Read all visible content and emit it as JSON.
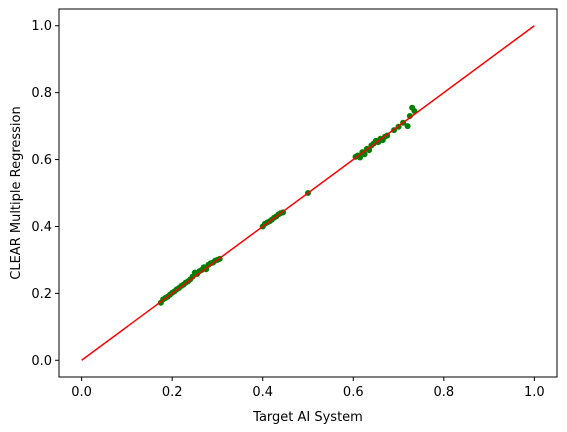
{
  "chart_data": {
    "type": "scatter",
    "title": "",
    "xlabel": "Target AI System",
    "ylabel": "CLEAR Multiple Regression",
    "xlim": [
      -0.05,
      1.05
    ],
    "ylim": [
      -0.05,
      1.05
    ],
    "xticks": [
      0.0,
      0.2,
      0.4,
      0.6,
      0.8,
      1.0
    ],
    "yticks": [
      0.0,
      0.2,
      0.4,
      0.6,
      0.8,
      1.0
    ],
    "xtick_labels": [
      "0.0",
      "0.2",
      "0.4",
      "0.6",
      "0.8",
      "1.0"
    ],
    "ytick_labels": [
      "0.0",
      "0.2",
      "0.4",
      "0.6",
      "0.8",
      "1.0"
    ],
    "grid": false,
    "colors": {
      "points": "#008000",
      "line": "#ff0000"
    },
    "line": {
      "x": [
        0.0,
        1.0
      ],
      "y": [
        0.0,
        1.0
      ]
    },
    "points": {
      "x": [
        0.175,
        0.18,
        0.185,
        0.19,
        0.195,
        0.2,
        0.205,
        0.21,
        0.215,
        0.22,
        0.225,
        0.23,
        0.235,
        0.24,
        0.245,
        0.25,
        0.255,
        0.26,
        0.265,
        0.27,
        0.275,
        0.28,
        0.285,
        0.29,
        0.295,
        0.3,
        0.305,
        0.4,
        0.405,
        0.41,
        0.415,
        0.42,
        0.425,
        0.43,
        0.435,
        0.44,
        0.445,
        0.5,
        0.605,
        0.61,
        0.615,
        0.62,
        0.625,
        0.63,
        0.635,
        0.64,
        0.645,
        0.65,
        0.655,
        0.66,
        0.665,
        0.67,
        0.675,
        0.69,
        0.7,
        0.71,
        0.72,
        0.725,
        0.73,
        0.735
      ],
      "y": [
        0.172,
        0.182,
        0.186,
        0.19,
        0.196,
        0.202,
        0.206,
        0.212,
        0.216,
        0.222,
        0.226,
        0.232,
        0.236,
        0.242,
        0.25,
        0.262,
        0.258,
        0.266,
        0.27,
        0.278,
        0.272,
        0.285,
        0.29,
        0.292,
        0.298,
        0.3,
        0.303,
        0.4,
        0.408,
        0.412,
        0.415,
        0.42,
        0.426,
        0.43,
        0.436,
        0.44,
        0.442,
        0.5,
        0.608,
        0.612,
        0.606,
        0.622,
        0.616,
        0.632,
        0.628,
        0.642,
        0.648,
        0.656,
        0.652,
        0.662,
        0.658,
        0.668,
        0.672,
        0.688,
        0.698,
        0.71,
        0.7,
        0.73,
        0.755,
        0.745
      ]
    }
  }
}
